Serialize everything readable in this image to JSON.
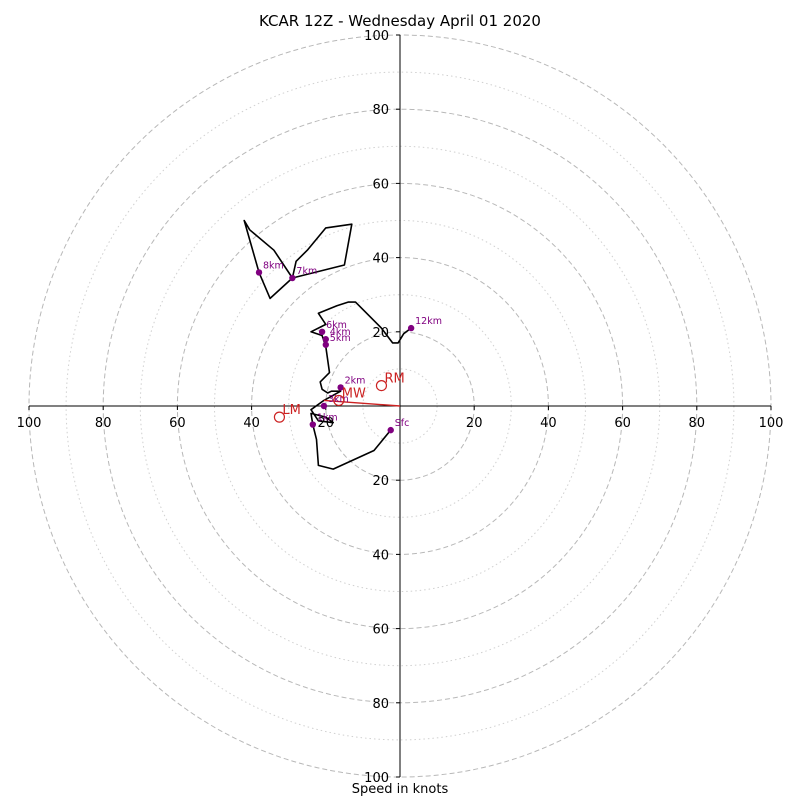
{
  "chart_data": {
    "type": "scatter",
    "title": "KCAR 12Z - Wednesday April 01 2020",
    "xlabel": "Speed in knots",
    "ylabel": "",
    "xlim": [
      -100,
      100
    ],
    "ylim": [
      -100,
      100
    ],
    "ring_major": [
      20,
      40,
      60,
      80,
      100
    ],
    "ring_minor": [
      10,
      30,
      50,
      70,
      90
    ],
    "axis_tick_values": [
      20,
      40,
      60,
      80,
      100
    ],
    "axis_tick_labels": [
      "20",
      "40",
      "60",
      "80",
      "100"
    ],
    "grid": true,
    "hodograph_trace": [
      [
        -2.5,
        -6.5
      ],
      [
        -7,
        -12
      ],
      [
        -18,
        -17
      ],
      [
        -22,
        -16
      ],
      [
        -22.5,
        -9
      ],
      [
        -23.5,
        -5
      ],
      [
        -24,
        -2
      ],
      [
        -20,
        -3
      ],
      [
        -18,
        -4.5
      ],
      [
        -22,
        -4
      ],
      [
        -24,
        -1
      ],
      [
        -20.5,
        1.5
      ],
      [
        -16,
        4
      ],
      [
        -18.5,
        4
      ],
      [
        -19.5,
        3.5
      ],
      [
        -21,
        4.5
      ],
      [
        -21.5,
        6.5
      ],
      [
        -19,
        9
      ],
      [
        -20,
        16
      ],
      [
        -21,
        19
      ],
      [
        -24,
        20
      ],
      [
        -20,
        22
      ],
      [
        -22,
        25
      ],
      [
        -17,
        27
      ],
      [
        -14,
        28
      ],
      [
        -12,
        28
      ],
      [
        -5,
        21
      ],
      [
        -2,
        17
      ],
      [
        -0.5,
        17
      ],
      [
        1,
        19.5
      ],
      [
        3,
        21
      ]
    ],
    "hodograph_upper_trace": [
      [
        -29,
        34.5
      ],
      [
        -28,
        39
      ],
      [
        -25,
        42
      ],
      [
        -20,
        48
      ],
      [
        -13,
        49
      ],
      [
        -15,
        38
      ],
      [
        -29,
        34.5
      ],
      [
        -35,
        29
      ],
      [
        -38,
        36
      ],
      [
        -42,
        50
      ],
      [
        -40.5,
        47.5
      ],
      [
        -34,
        42
      ],
      [
        -29,
        34.5
      ]
    ],
    "height_markers": [
      {
        "label": "Sfc",
        "x": -2.5,
        "y": -6.5
      },
      {
        "label": "1km",
        "x": -23.5,
        "y": -5
      },
      {
        "label": "2km",
        "x": -16,
        "y": 5
      },
      {
        "label": "3km",
        "x": -20.5,
        "y": 0
      },
      {
        "label": "4km",
        "x": -20,
        "y": 18
      },
      {
        "label": "5km",
        "x": -20,
        "y": 16.5
      },
      {
        "label": "6km",
        "x": -21,
        "y": 20
      },
      {
        "label": "7km",
        "x": -29,
        "y": 34.5
      },
      {
        "label": "8km",
        "x": -38,
        "y": 36
      },
      {
        "label": "12km",
        "x": 3,
        "y": 21
      }
    ],
    "storm_motion": [
      {
        "label": "RM",
        "x": -5,
        "y": 5.5
      },
      {
        "label": "LM",
        "x": -32.5,
        "y": -3
      },
      {
        "label": "MW",
        "x": -16.5,
        "y": 1.5
      }
    ],
    "mean_wind_vector": {
      "from": [
        0,
        0
      ],
      "to": [
        -20.5,
        1.5
      ]
    },
    "colors": {
      "trace": "#000000",
      "height_marker": "#800080",
      "storm_motion": "#cc2222",
      "ring_major": "#b8b8b8",
      "ring_minor": "#d0d0d0",
      "axes": "#000000"
    }
  }
}
